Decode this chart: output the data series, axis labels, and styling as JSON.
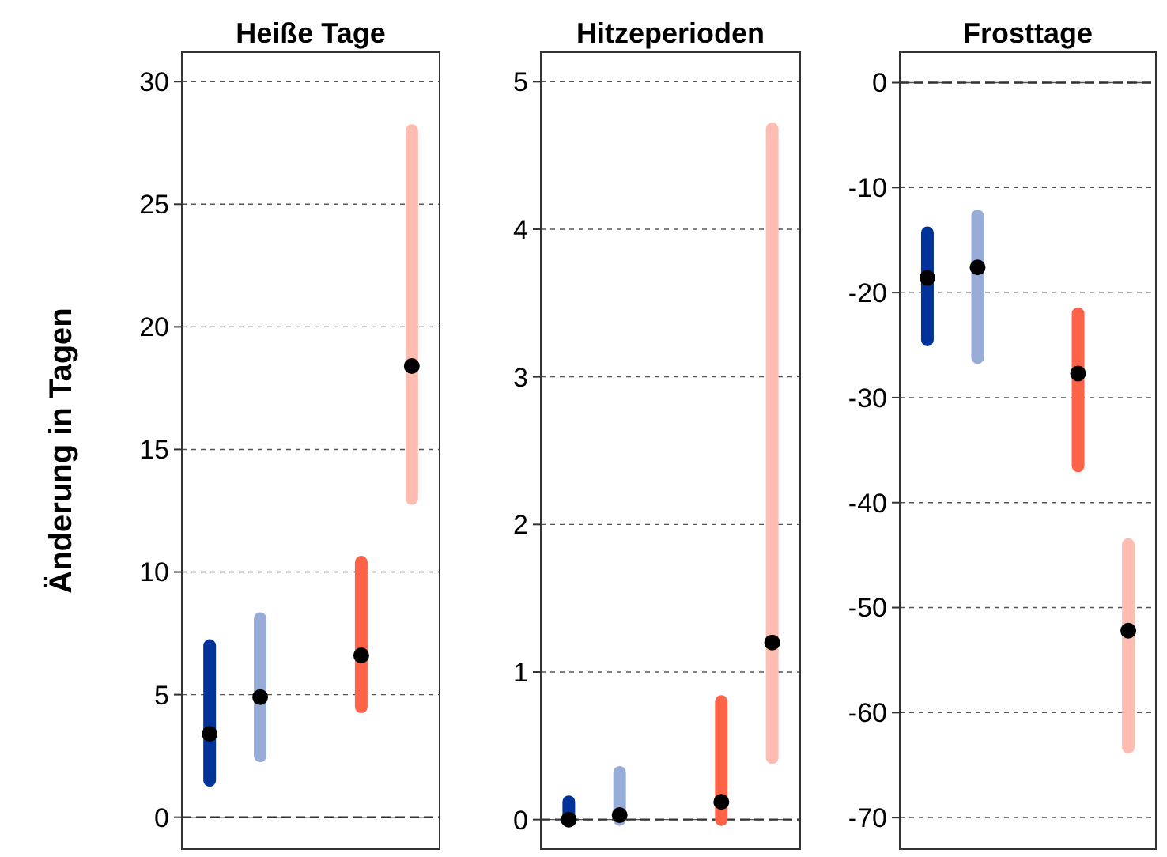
{
  "chart_data": [
    {
      "type": "bar",
      "title": "Heiße Tage",
      "ylabel": "Änderung in Tagen",
      "categories": [
        null,
        null,
        null,
        null,
        null
      ],
      "ylim": [
        -1.3,
        31.2
      ],
      "yticks": [
        0,
        5,
        10,
        15,
        20,
        25,
        30
      ],
      "grid": "y",
      "ref_lines": [
        {
          "axis": "y",
          "value": 0,
          "line_style": "dashed"
        }
      ],
      "series": [
        {
          "colors": [
            "#003399",
            "#98acd8",
            null,
            "#ff6347",
            "#ffbcb0"
          ],
          "base": [
            1.5,
            2.5,
            null,
            4.5,
            13.0
          ],
          "values": [
            5.5,
            5.6,
            null,
            5.9,
            15.0
          ]
        },
        {
          "type": "scatter",
          "color": "#000000",
          "values": [
            3.4,
            4.9,
            null,
            6.6,
            18.4
          ]
        }
      ]
    },
    {
      "type": "bar",
      "title": "Hitzeperioden",
      "categories": [
        null,
        null,
        null,
        null,
        null
      ],
      "ylim": [
        -0.2,
        5.2
      ],
      "yticks": [
        0,
        1,
        2,
        3,
        4,
        5
      ],
      "grid": "y",
      "ref_lines": [
        {
          "axis": "y",
          "value": 0,
          "line_style": "dashed"
        }
      ],
      "series": [
        {
          "colors": [
            "#003399",
            "#98acd8",
            null,
            "#ff6347",
            "#ffbcb0"
          ],
          "base": [
            0,
            0,
            null,
            0,
            0.42
          ],
          "values": [
            0.12,
            0.32,
            null,
            0.8,
            4.26
          ]
        },
        {
          "type": "scatter",
          "color": "#000000",
          "values": [
            0,
            0.03,
            null,
            0.12,
            1.2
          ]
        }
      ]
    },
    {
      "type": "bar",
      "title": "Frosttage",
      "categories": [
        null,
        null,
        null,
        null,
        null
      ],
      "ylim": [
        -73,
        2.9
      ],
      "yticks": [
        0,
        -10,
        -20,
        -30,
        -40,
        -50,
        -60,
        -70
      ],
      "grid": "y",
      "ref_lines": [
        {
          "axis": "y",
          "value": 0,
          "line_style": "dashed"
        }
      ],
      "series": [
        {
          "colors": [
            "#003399",
            "#98acd8",
            null,
            "#ff6347",
            "#ffbcb0"
          ],
          "base": [
            -24.5,
            -26.2,
            null,
            -36.5,
            -63.3
          ],
          "values": [
            10.2,
            13.5,
            null,
            14.5,
            19.3
          ]
        },
        {
          "type": "scatter",
          "color": "#000000",
          "values": [
            -18.6,
            -17.6,
            null,
            -27.7,
            -52.2
          ]
        }
      ]
    }
  ]
}
